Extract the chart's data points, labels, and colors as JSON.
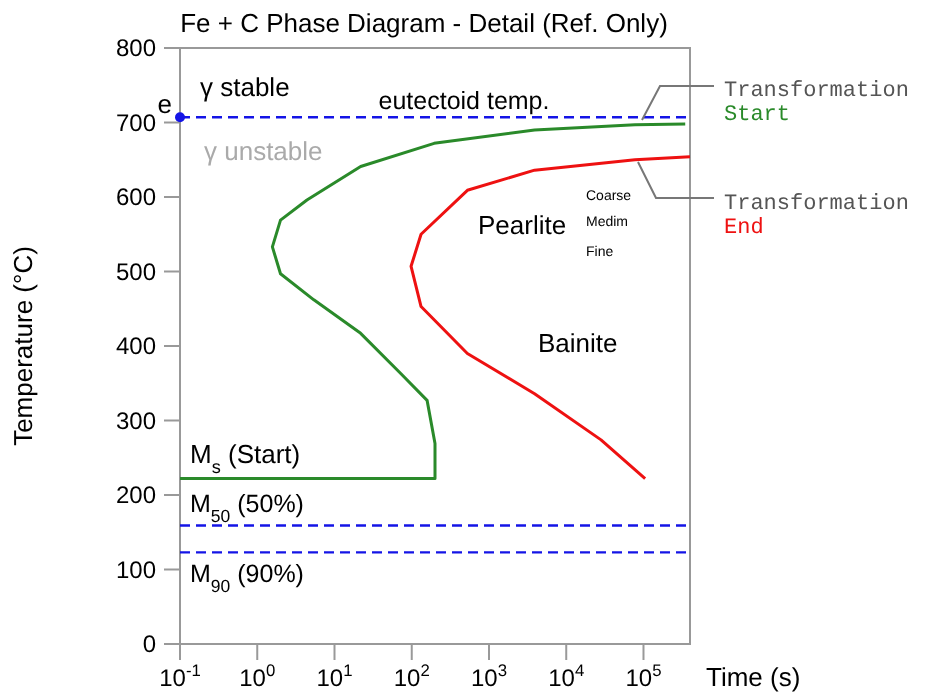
{
  "chart_data": {
    "type": "line",
    "title": "Fe + C Phase Diagram - Detail (Ref. Only)",
    "xlabel": "Time (s)",
    "ylabel": "Temperature (°C)",
    "log": "x",
    "xlim": [
      0.1,
      400000
    ],
    "ylim": [
      0,
      800
    ],
    "xticks": [
      {
        "value": 0.1,
        "label": "10$^{-1}$"
      },
      {
        "value": 1,
        "label": "10$^{0}$"
      },
      {
        "value": 10,
        "label": "10$^{1}$"
      },
      {
        "value": 100,
        "label": "10$^{2}$"
      },
      {
        "value": 1000,
        "label": "10$^{3}$"
      },
      {
        "value": 10000,
        "label": "10$^{4}$"
      },
      {
        "value": 100000,
        "label": "10$^{5}$"
      }
    ],
    "yticks": [
      0,
      100,
      200,
      300,
      400,
      500,
      600,
      700,
      800
    ],
    "series": [
      {
        "name": "Transformation Start",
        "color": "#2a8a2a",
        "x": [
          0.1,
          200,
          200,
          158,
          72,
          21.8,
          5.4,
          2.0,
          1.57,
          2.0,
          4.4,
          21.8,
          195,
          3890,
          77600,
          347000
        ],
        "values": [
          222,
          222,
          269,
          327,
          363,
          417,
          462,
          497,
          533,
          569,
          596,
          641,
          672,
          690,
          697,
          698
        ]
      },
      {
        "name": "Transformation End",
        "color": "#ee1111",
        "x": [
          400000,
          77600,
          3890,
          525,
          132,
          98,
          132,
          525,
          3890,
          28200,
          105000
        ],
        "values": [
          654,
          650,
          636,
          609,
          550,
          507,
          453,
          390,
          336,
          274,
          222
        ]
      },
      {
        "type": "scatter",
        "color": "#1414e6",
        "marker": "circle",
        "x": [
          0.1
        ],
        "values": [
          707
        ]
      }
    ],
    "ref_lines": [
      {
        "axis": "y",
        "value": 707,
        "label": "eutectoid temp.",
        "color": "#1414e6",
        "line_style": "dashed"
      },
      {
        "axis": "y",
        "value": 159,
        "label": "M$_{50}$ (50%)",
        "color": "#1414e6",
        "line_style": "dashed"
      },
      {
        "axis": "y",
        "value": 123,
        "label": "M$_{90}$ (90%)",
        "color": "#1414e6",
        "line_style": "dashed"
      }
    ],
    "annotations": [
      "γ stable",
      "γ unstable",
      "Pearlite",
      "Coarse",
      "Medim",
      "Fine",
      "Bainite",
      {
        "text": "e",
        "x": 0.1,
        "y": 707
      },
      {
        "text": "M$_{s}$ (Start)",
        "x": 0.1,
        "y": 222
      }
    ]
  }
}
